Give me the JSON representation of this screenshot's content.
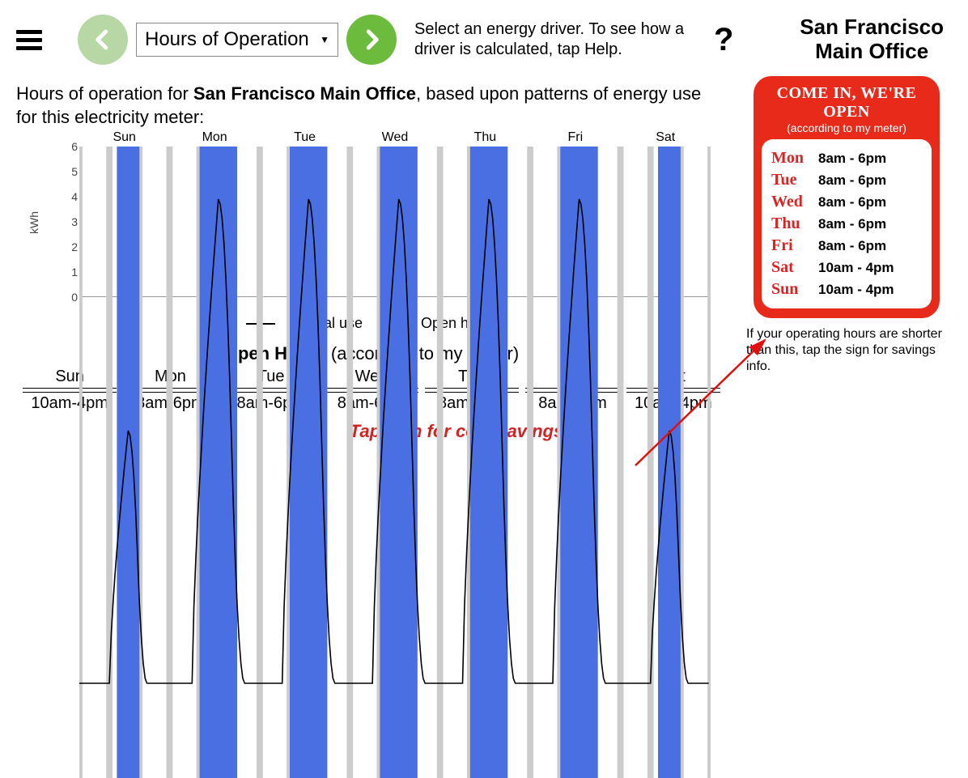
{
  "colors": {
    "accent_green_prev": "#b7d7a5",
    "accent_green_next": "#6cbb3c",
    "bar": "#4a6fe3",
    "sign_red": "#e82a1a",
    "cta_red": "#d22222",
    "arrow_red": "#e20f0f"
  },
  "header": {
    "driver_label": "Hours of Operation",
    "instructions": "Select an energy driver. To see how a driver is calculated, tap Help.",
    "help_glyph": "?",
    "site_line1": "San Francisco",
    "site_line2": "Main Office"
  },
  "description": {
    "prefix": "Hours of operation for ",
    "site": "San Francisco Main Office",
    "suffix": ", based upon patterns of energy use for this electricity meter:"
  },
  "chart": {
    "ylabel": "kWh",
    "ylim": [
      0,
      6
    ],
    "ytick_step": 1,
    "days": [
      "Sun",
      "Mon",
      "Tue",
      "Wed",
      "Thu",
      "Fri",
      "Sat"
    ],
    "open_bars": [
      {
        "day": "Sun",
        "start_h": 10,
        "end_h": 16
      },
      {
        "day": "Mon",
        "start_h": 8,
        "end_h": 18
      },
      {
        "day": "Tue",
        "start_h": 8,
        "end_h": 18
      },
      {
        "day": "Wed",
        "start_h": 8,
        "end_h": 18
      },
      {
        "day": "Thu",
        "start_h": 8,
        "end_h": 18
      },
      {
        "day": "Fri",
        "start_h": 8,
        "end_h": 18
      },
      {
        "day": "Sat",
        "start_h": 10,
        "end_h": 16
      }
    ],
    "series_label_use": "Typical use",
    "series_label_open": "Open hours",
    "grid_color": "#cccccc",
    "line_color": "#000000",
    "curve": {
      "base": 0.9,
      "days": [
        {
          "peak": 3.3,
          "ramp_start_h": 9,
          "ramp_end_h": 17
        },
        {
          "peak": 5.5,
          "ramp_start_h": 7,
          "ramp_end_h": 19
        },
        {
          "peak": 5.5,
          "ramp_start_h": 7,
          "ramp_end_h": 19
        },
        {
          "peak": 5.5,
          "ramp_start_h": 7,
          "ramp_end_h": 19
        },
        {
          "peak": 5.5,
          "ramp_start_h": 7,
          "ramp_end_h": 19
        },
        {
          "peak": 5.5,
          "ramp_start_h": 7,
          "ramp_end_h": 19
        },
        {
          "peak": 3.3,
          "ramp_start_h": 9,
          "ramp_end_h": 17
        }
      ]
    }
  },
  "open_hours_table": {
    "title_bold": "Open Hours",
    "title_rest": " (according to my meter)",
    "days": [
      "Sun",
      "Mon",
      "Tue",
      "Wed",
      "Thu",
      "Fri",
      "Sat"
    ],
    "times": [
      "10am-4pm",
      "8am-6pm",
      "8am-6pm",
      "8am-6pm",
      "8am-6pm",
      "8am-6pm",
      "10am-4pm"
    ]
  },
  "cta": "Tap sign for cost savings",
  "sign": {
    "header": "COME IN, WE'RE OPEN",
    "sub": "(according to my meter)",
    "rows": [
      {
        "d": "Mon",
        "t": "8am - 6pm"
      },
      {
        "d": "Tue",
        "t": "8am - 6pm"
      },
      {
        "d": "Wed",
        "t": "8am - 6pm"
      },
      {
        "d": "Thu",
        "t": "8am - 6pm"
      },
      {
        "d": "Fri",
        "t": "8am - 6pm"
      },
      {
        "d": "Sat",
        "t": "10am - 4pm"
      },
      {
        "d": "Sun",
        "t": "10am - 4pm"
      }
    ],
    "note": "If your operating hours are shorter than this, tap the sign for savings info."
  }
}
